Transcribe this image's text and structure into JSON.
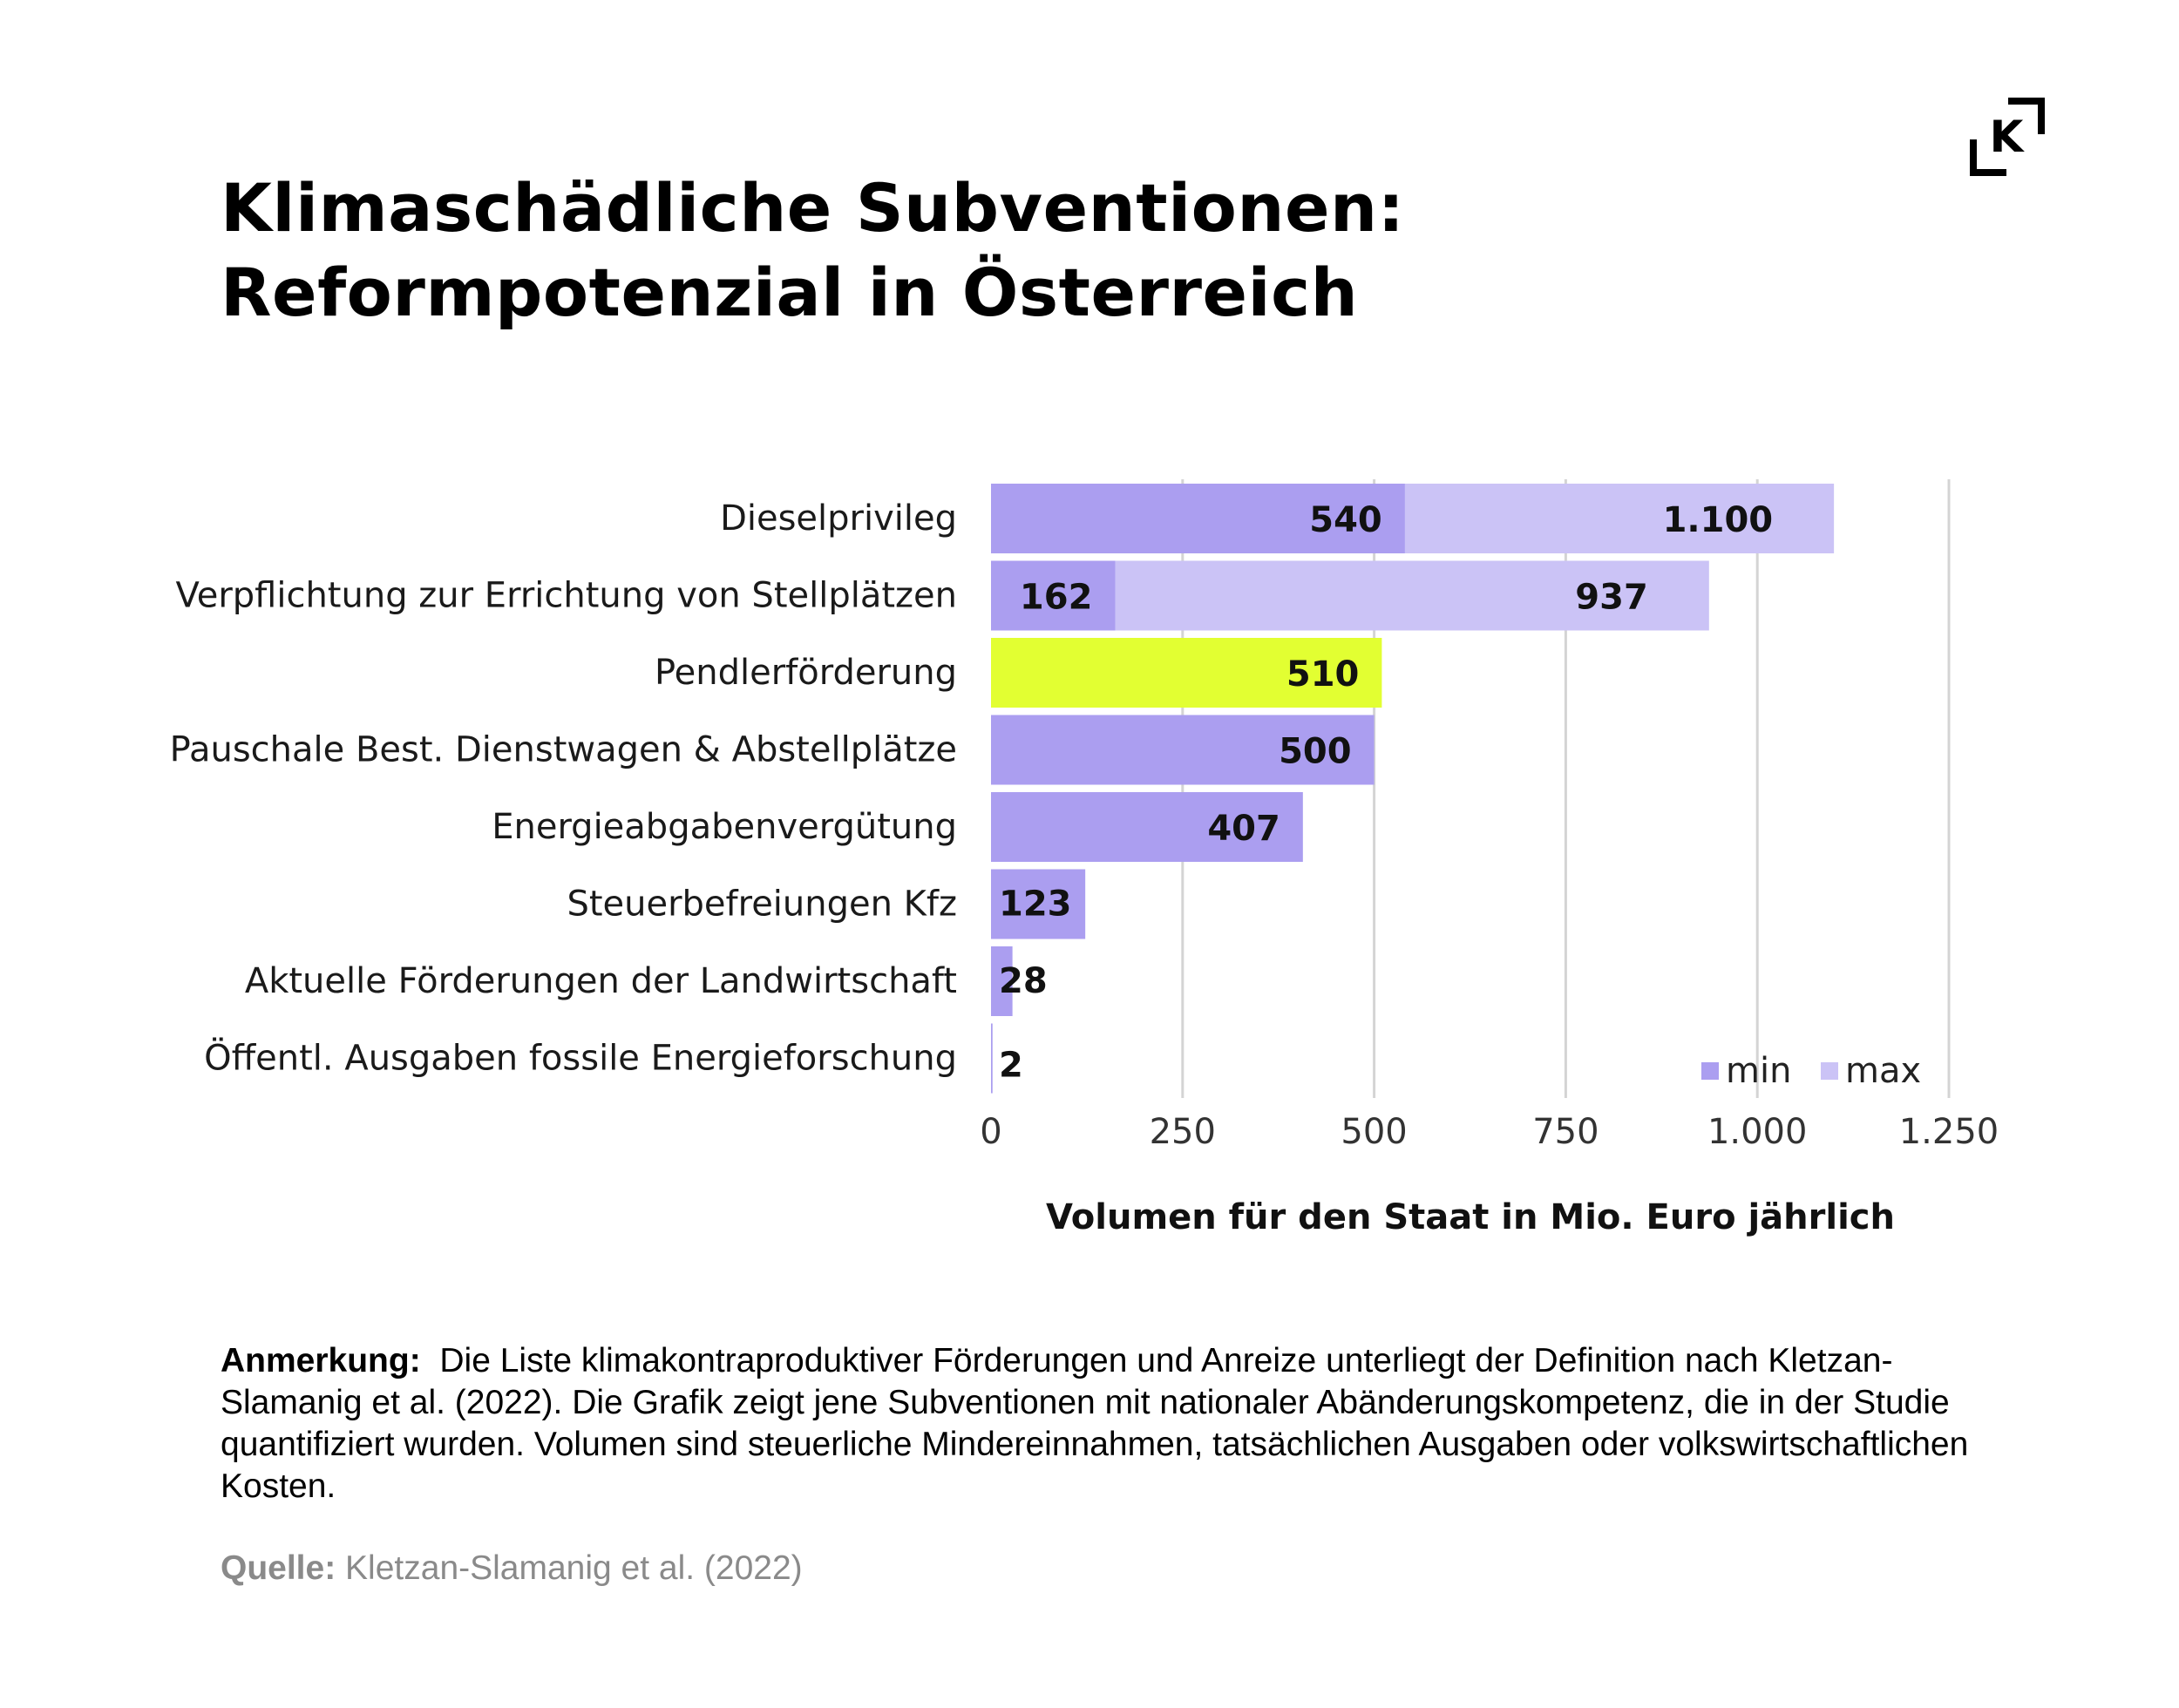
{
  "title": {
    "line1": "Klimaschädliche Subventionen:",
    "line2": "Reformpotenzial in Österreich"
  },
  "logo": {
    "icon": "k-bracket-logo",
    "letter": "K"
  },
  "chart_data": {
    "type": "bar",
    "orientation": "horizontal",
    "categories": [
      "Dieselprivileg",
      "Verpflichtung zur Errichtung von Stellplätzen",
      "Pendlerförderung",
      "Pauschale Best. Dienstwagen & Abstellplätze",
      "Energieabgabenvergütung",
      "Steuerbefreiungen Kfz",
      "Aktuelle Förderungen der Landwirtschaft",
      "Öffentl. Ausgaben fossile Energieforschung"
    ],
    "series": [
      {
        "name": "min",
        "values": [
          540,
          162,
          510,
          500,
          407,
          123,
          28,
          2
        ],
        "color": "#ab9ef0"
      },
      {
        "name": "max",
        "values": [
          1100,
          937,
          null,
          null,
          null,
          null,
          null,
          null
        ],
        "color": "#cbc3f6"
      }
    ],
    "data_labels": {
      "min": [
        "540",
        "162",
        "510",
        "500",
        "407",
        "123",
        "28",
        "2"
      ],
      "max": [
        "1.100",
        "937",
        "",
        "",
        "",
        "",
        "",
        ""
      ]
    },
    "highlight": {
      "category": "Pendlerförderung",
      "color": "#e2ff32"
    },
    "xlim": [
      0,
      1250
    ],
    "x_ticks": [
      0,
      250,
      500,
      750,
      1000,
      1250
    ],
    "x_tick_labels": [
      "0",
      "250",
      "500",
      "750",
      "1.000",
      "1.250"
    ],
    "xlabel": "Volumen für den Staat in Mio. Euro jährlich",
    "grid": true,
    "legend": {
      "position": "bottom-right",
      "entries": [
        "min",
        "max"
      ]
    }
  },
  "note": {
    "lead": "Anmerkung:",
    "text": "Die Liste klimakontraproduktiver Förderungen und Anreize unterliegt der Definition nach Kletzan-Slamanig et al. (2022). Die Grafik zeigt jene Subventionen mit nationaler Abänderungskompetenz, die in der Studie quantifiziert wurden. Volumen sind steuerliche Mindereinnahmen, tatsächlichen Ausgaben oder volkswirtschaftlichen Kosten."
  },
  "source": {
    "lead": "Quelle:",
    "text": "Kletzan-Slamanig  et al. (2022)"
  }
}
